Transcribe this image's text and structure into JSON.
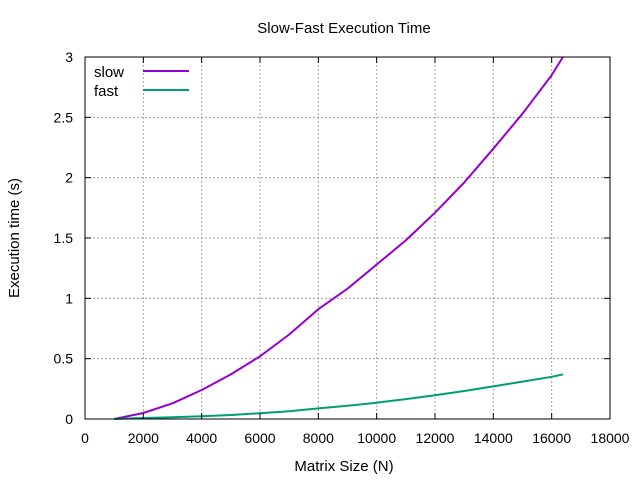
{
  "chart_data": {
    "type": "line",
    "title": "Slow-Fast Execution Time",
    "xlabel": "Matrix Size (N)",
    "ylabel": "Execution time (s)",
    "xlim": [
      0,
      18000
    ],
    "ylim": [
      0,
      3
    ],
    "xticks": [
      0,
      2000,
      4000,
      6000,
      8000,
      10000,
      12000,
      14000,
      16000,
      18000
    ],
    "yticks": [
      0,
      0.5,
      1,
      1.5,
      2,
      2.5,
      3
    ],
    "ytick_labels": [
      "0",
      "0.5",
      "1",
      "1.5",
      "2",
      "2.5",
      "3"
    ],
    "grid": true,
    "legend_position": "top-left",
    "series": [
      {
        "name": "slow",
        "color": "#9400d3",
        "x": [
          1000,
          2000,
          3000,
          4000,
          5000,
          6000,
          7000,
          8000,
          9000,
          10000,
          11000,
          12000,
          13000,
          14000,
          15000,
          16000,
          16384
        ],
        "y": [
          0.0,
          0.05,
          0.13,
          0.24,
          0.37,
          0.52,
          0.7,
          0.91,
          1.08,
          1.28,
          1.48,
          1.71,
          1.96,
          2.24,
          2.53,
          2.85,
          3.0
        ]
      },
      {
        "name": "fast",
        "color": "#009e73",
        "x": [
          1000,
          2000,
          3000,
          4000,
          5000,
          6000,
          7000,
          8000,
          9000,
          10000,
          11000,
          12000,
          13000,
          14000,
          15000,
          16000,
          16384
        ],
        "y": [
          0.0,
          0.008,
          0.015,
          0.022,
          0.033,
          0.048,
          0.065,
          0.088,
          0.11,
          0.135,
          0.165,
          0.197,
          0.232,
          0.27,
          0.31,
          0.35,
          0.37
        ]
      }
    ]
  }
}
